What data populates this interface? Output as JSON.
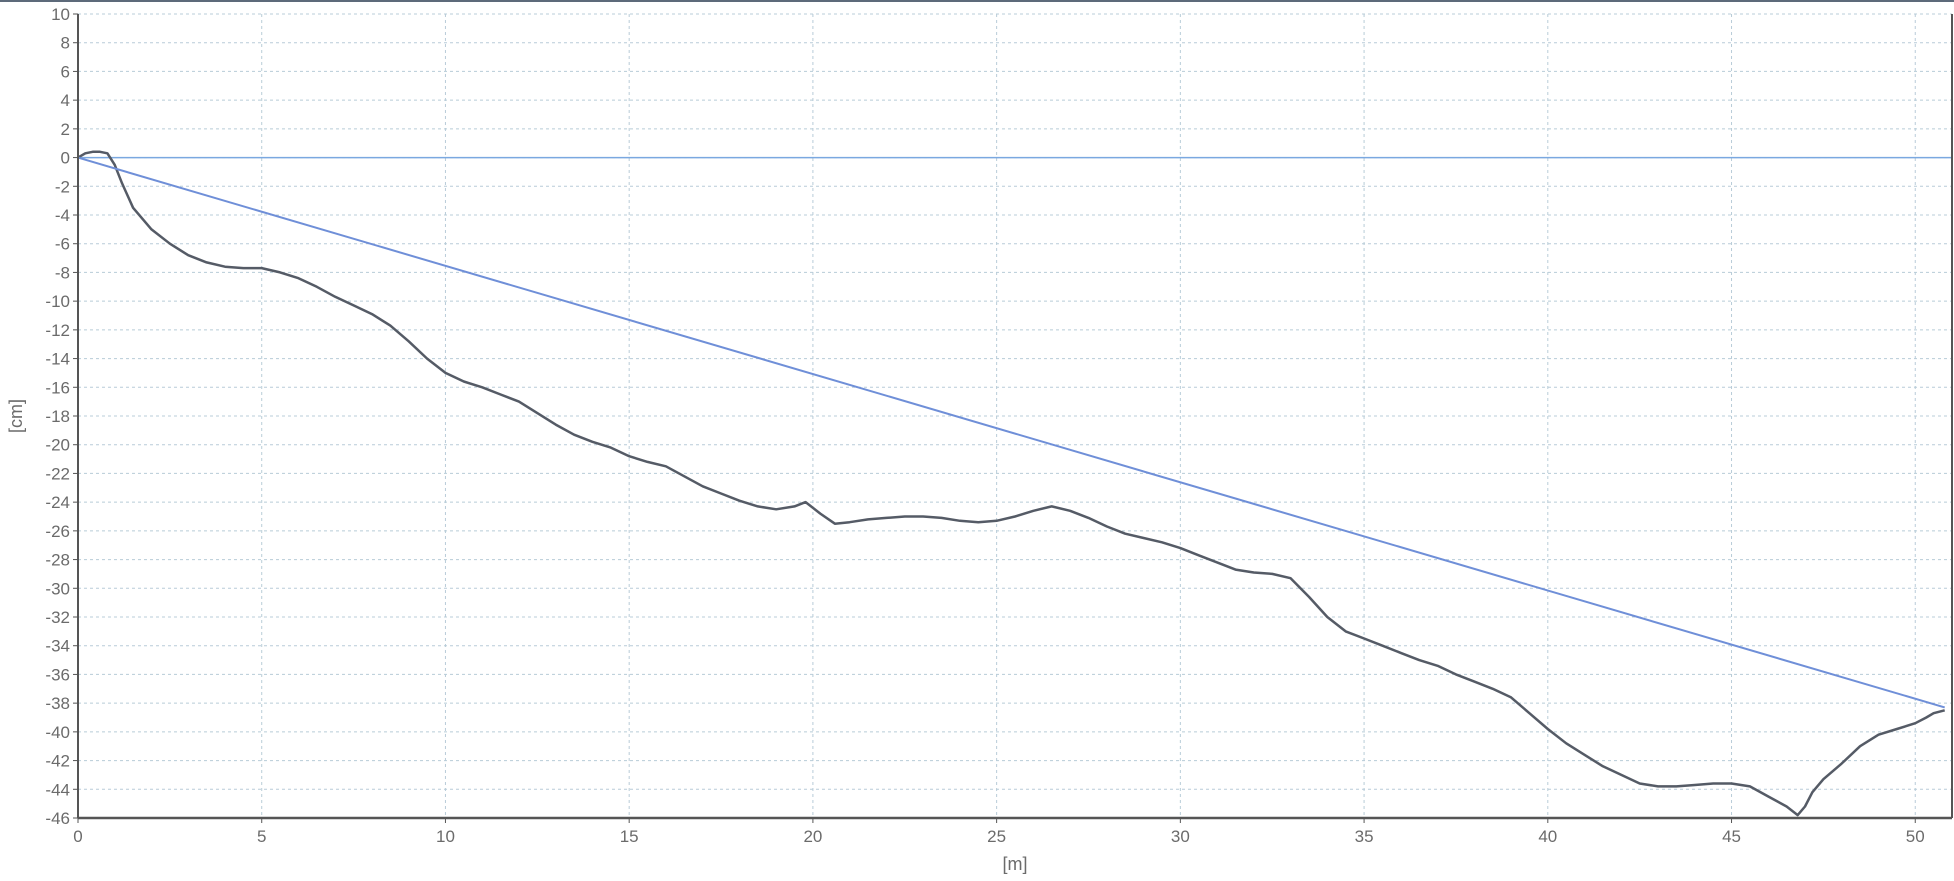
{
  "chart_data": {
    "type": "line",
    "xlabel": "[m]",
    "ylabel": "[cm]",
    "xlim": [
      0,
      51
    ],
    "ylim": [
      -46,
      10
    ],
    "x_ticks": [
      0,
      5,
      10,
      15,
      20,
      25,
      30,
      35,
      40,
      45,
      50
    ],
    "y_ticks": [
      10,
      8,
      6,
      4,
      2,
      0,
      -2,
      -4,
      -6,
      -8,
      -10,
      -12,
      -14,
      -16,
      -18,
      -20,
      -22,
      -24,
      -26,
      -28,
      -30,
      -32,
      -34,
      -36,
      -38,
      -40,
      -42,
      -44,
      -46
    ],
    "grid": true,
    "colors": {
      "profile": "#555b66",
      "reference": "#6f8fd8",
      "zero_line": "#7aa8e0",
      "grid": "#b8ccd8",
      "axis": "#555555"
    },
    "series": [
      {
        "x": [
          0,
          0.2,
          0.4,
          0.6,
          0.8,
          1.0,
          1.2,
          1.5,
          2.0,
          2.5,
          3.0,
          3.5,
          4.0,
          4.5,
          5.0,
          5.5,
          6.0,
          6.5,
          7.0,
          7.5,
          8.0,
          8.5,
          9.0,
          9.5,
          10.0,
          10.5,
          11.0,
          11.5,
          12.0,
          12.5,
          13.0,
          13.5,
          14.0,
          14.5,
          15.0,
          15.5,
          16.0,
          16.5,
          17.0,
          17.5,
          18.0,
          18.5,
          19.0,
          19.5,
          19.8,
          20.2,
          20.6,
          21.0,
          21.5,
          22.0,
          22.5,
          23.0,
          23.5,
          24.0,
          24.5,
          25.0,
          25.5,
          26.0,
          26.5,
          27.0,
          27.5,
          28.0,
          28.5,
          29.0,
          29.5,
          30.0,
          30.5,
          31.0,
          31.5,
          32.0,
          32.5,
          33.0,
          33.5,
          34.0,
          34.5,
          35.0,
          35.5,
          36.0,
          36.5,
          37.0,
          37.5,
          38.0,
          38.5,
          39.0,
          39.5,
          40.0,
          40.5,
          41.0,
          41.5,
          42.0,
          42.5,
          43.0,
          43.5,
          44.0,
          44.5,
          45.0,
          45.5,
          46.0,
          46.5,
          46.8,
          47.0,
          47.2,
          47.5,
          48.0,
          48.5,
          49.0,
          49.5,
          50.0,
          50.3,
          50.5,
          50.8
        ],
        "y": [
          0,
          0.3,
          0.4,
          0.4,
          0.3,
          -0.5,
          -1.8,
          -3.5,
          -5,
          -6,
          -6.8,
          -7.3,
          -7.6,
          -7.7,
          -7.7,
          -8,
          -8.4,
          -9,
          -9.7,
          -10.3,
          -10.9,
          -11.7,
          -12.8,
          -14,
          -15,
          -15.6,
          -16,
          -16.5,
          -17,
          -17.8,
          -18.6,
          -19.3,
          -19.8,
          -20.2,
          -20.8,
          -21.2,
          -21.5,
          -22.2,
          -22.9,
          -23.4,
          -23.9,
          -24.3,
          -24.5,
          -24.3,
          -24,
          -24.8,
          -25.5,
          -25.4,
          -25.2,
          -25.1,
          -25,
          -25,
          -25.1,
          -25.3,
          -25.4,
          -25.3,
          -25,
          -24.6,
          -24.3,
          -24.6,
          -25.1,
          -25.7,
          -26.2,
          -26.5,
          -26.8,
          -27.2,
          -27.7,
          -28.2,
          -28.7,
          -28.9,
          -29,
          -29.3,
          -30.6,
          -32,
          -33,
          -33.5,
          -34,
          -34.5,
          -35,
          -35.4,
          -36,
          -36.5,
          -37,
          -37.6,
          -38.7,
          -39.8,
          -40.8,
          -41.6,
          -42.4,
          -43,
          -43.6,
          -43.8,
          -43.8,
          -43.7,
          -43.6,
          -43.6,
          -43.8,
          -44.5,
          -45.2,
          -45.8,
          -45.2,
          -44.2,
          -43.3,
          -42.2,
          -41,
          -40.2,
          -39.8,
          -39.4,
          -39,
          -38.7,
          -38.5
        ]
      },
      {
        "x": [
          0,
          50.8
        ],
        "y": [
          0,
          -38.3
        ]
      }
    ]
  }
}
